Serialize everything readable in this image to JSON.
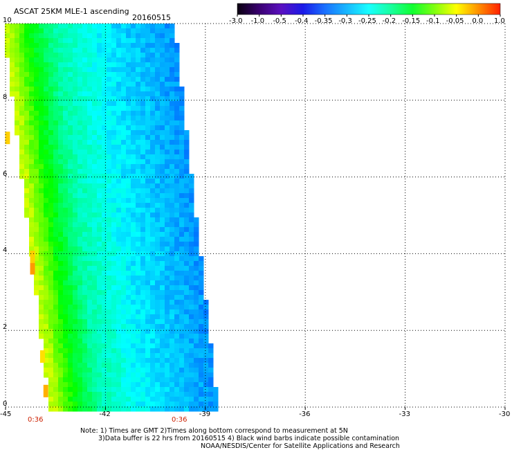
{
  "header": {
    "title": "ASCAT 25KM MLE-1 ascending",
    "date": "20160515"
  },
  "colorbar": {
    "labels": [
      "-3.0",
      "-1.0",
      "-0.5",
      "-0.4",
      "-0.35",
      "-0.3",
      "-0.25",
      "-0.2",
      "-0.15",
      "-0.1",
      "-0.05",
      "0.0",
      "1.0"
    ],
    "colors": [
      "#0a0010",
      "#3a0070",
      "#5a10c0",
      "#1a1ae8",
      "#1a70ff",
      "#18b8ff",
      "#18ffff",
      "#18ffa0",
      "#10ff30",
      "#80ff10",
      "#ffff00",
      "#ff9000",
      "#ff2000"
    ]
  },
  "axes": {
    "x_ticks": [
      "-45",
      "-42",
      "-39",
      "-36",
      "-33",
      "-30"
    ],
    "y_ticks": [
      "0",
      "2",
      "4",
      "6",
      "8",
      "10"
    ],
    "x_range": [
      -45,
      -30
    ],
    "y_range": [
      0,
      10
    ]
  },
  "times": [
    "0:36",
    "0:36"
  ],
  "notes": [
    "Note: 1) Times are GMT 2)Times along bottom correspond to measurement at 5N",
    "3)Data buffer is 22 hrs from 20160515 4) Black wind barbs indicate possible contamination",
    "NOAA/NESDIS/Center for Satellite Applications and Research"
  ],
  "chart_data": {
    "type": "heatmap",
    "title": "ASCAT 25KM MLE-1 ascending 20160515",
    "x_ticks": [
      -45,
      -42,
      -39,
      -36,
      -33,
      -30
    ],
    "y_ticks": [
      0,
      2,
      4,
      6,
      8,
      10
    ],
    "xlim": [
      -45,
      -30
    ],
    "ylim": [
      0,
      10
    ],
    "grid": true,
    "colorbar_range": [
      -3.0,
      1.0
    ],
    "swath": {
      "left_edge_lon_at_lat0": -43.6,
      "left_edge_lon_at_lat10": -45.0,
      "right_edge_lon_at_lat0": -38.7,
      "right_edge_lon_at_lat10": -40.0
    }
  }
}
